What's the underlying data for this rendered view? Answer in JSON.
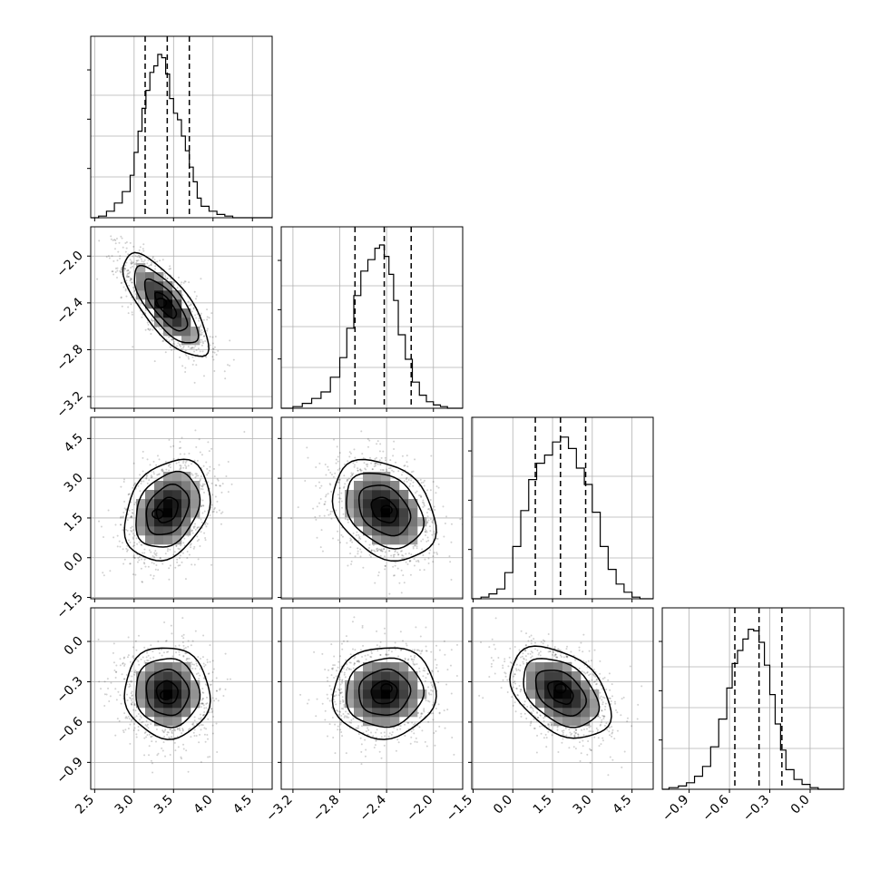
{
  "chart_data": {
    "type": "corner",
    "grid": true,
    "quantiles": [
      0.16,
      0.5,
      0.84
    ],
    "parameters": [
      {
        "index": 0,
        "range": [
          2.45,
          4.75
        ],
        "ticks": [
          2.5,
          3.0,
          3.5,
          4.0,
          4.5
        ],
        "tick_labels": [
          "2.5",
          "3.0",
          "3.5",
          "4.0",
          "4.5"
        ],
        "quantile_values": [
          3.14,
          3.42,
          3.7
        ],
        "histogram": {
          "bin_edges": [
            2.55,
            2.65,
            2.75,
            2.85,
            2.95,
            3.0,
            3.05,
            3.1,
            3.15,
            3.2,
            3.25,
            3.3,
            3.35,
            3.4,
            3.45,
            3.5,
            3.55,
            3.6,
            3.65,
            3.7,
            3.75,
            3.8,
            3.85,
            3.95,
            4.05,
            4.15,
            4.25,
            4.35,
            4.45
          ],
          "counts": [
            0.01,
            0.04,
            0.09,
            0.16,
            0.26,
            0.4,
            0.53,
            0.67,
            0.78,
            0.89,
            0.93,
            1.0,
            0.98,
            0.88,
            0.73,
            0.64,
            0.6,
            0.5,
            0.41,
            0.31,
            0.22,
            0.12,
            0.07,
            0.04,
            0.02,
            0.01,
            0.0,
            0.0
          ]
        }
      },
      {
        "index": 1,
        "range": [
          -3.3,
          -1.75
        ],
        "ticks": [
          -3.2,
          -2.8,
          -2.4,
          -2.0
        ],
        "tick_labels": [
          "−3.2",
          "−2.8",
          "−2.4",
          "−2.0"
        ],
        "quantile_values": [
          -2.67,
          -2.42,
          -2.19
        ],
        "histogram": {
          "bin_edges": [
            -3.2,
            -3.12,
            -3.04,
            -2.96,
            -2.88,
            -2.8,
            -2.74,
            -2.68,
            -2.62,
            -2.56,
            -2.5,
            -2.46,
            -2.42,
            -2.38,
            -2.34,
            -2.3,
            -2.24,
            -2.18,
            -2.12,
            -2.06,
            -2.0,
            -1.94,
            -1.88,
            -1.82
          ],
          "counts": [
            0.01,
            0.03,
            0.06,
            0.1,
            0.19,
            0.31,
            0.49,
            0.69,
            0.84,
            0.91,
            0.98,
            1.0,
            0.93,
            0.82,
            0.66,
            0.45,
            0.3,
            0.16,
            0.08,
            0.04,
            0.02,
            0.01,
            0.0
          ]
        }
      },
      {
        "index": 2,
        "range": [
          -1.55,
          5.3
        ],
        "ticks": [
          -1.5,
          0.0,
          1.5,
          3.0,
          4.5
        ],
        "tick_labels": [
          "−1.5",
          "0.0",
          "1.5",
          "3.0",
          "4.5"
        ],
        "quantile_values": [
          0.85,
          1.8,
          2.75
        ],
        "histogram": {
          "bin_edges": [
            -1.2,
            -0.9,
            -0.6,
            -0.3,
            0.0,
            0.3,
            0.6,
            0.9,
            1.2,
            1.5,
            1.8,
            2.1,
            2.4,
            2.7,
            3.0,
            3.3,
            3.6,
            3.9,
            4.2,
            4.5,
            4.8,
            5.1
          ],
          "counts": [
            0.01,
            0.03,
            0.06,
            0.16,
            0.32,
            0.54,
            0.73,
            0.83,
            0.88,
            0.96,
            0.99,
            0.92,
            0.8,
            0.7,
            0.53,
            0.32,
            0.18,
            0.09,
            0.04,
            0.01,
            0.0
          ]
        }
      },
      {
        "index": 3,
        "range": [
          -1.1,
          0.25
        ],
        "ticks": [
          -0.9,
          -0.6,
          -0.3,
          0.0
        ],
        "tick_labels": [
          "−0.9",
          "−0.6",
          "−0.3",
          "0.0"
        ],
        "quantile_values": [
          -0.56,
          -0.38,
          -0.21
        ],
        "histogram": {
          "bin_edges": [
            -1.05,
            -0.98,
            -0.92,
            -0.86,
            -0.8,
            -0.74,
            -0.68,
            -0.62,
            -0.58,
            -0.54,
            -0.5,
            -0.46,
            -0.42,
            -0.38,
            -0.34,
            -0.3,
            -0.26,
            -0.22,
            -0.18,
            -0.12,
            -0.06,
            0.0,
            0.06,
            0.12,
            0.18
          ],
          "counts": [
            0.01,
            0.02,
            0.04,
            0.08,
            0.14,
            0.26,
            0.43,
            0.62,
            0.77,
            0.85,
            0.92,
            0.98,
            0.97,
            0.9,
            0.76,
            0.58,
            0.4,
            0.24,
            0.12,
            0.06,
            0.03,
            0.01,
            0.0,
            0.0
          ]
        }
      }
    ],
    "pairs": [
      {
        "x_param": 0,
        "y_param": 1,
        "mean": [
          3.4,
          -2.42
        ],
        "sd": [
          0.27,
          0.22
        ],
        "rho": -0.75,
        "levels": [
          0.5,
          1.0,
          1.5,
          2.0
        ],
        "peak": [
          3.34,
          -2.4
        ]
      },
      {
        "x_param": 0,
        "y_param": 2,
        "mean": [
          3.42,
          1.8
        ],
        "sd": [
          0.27,
          0.95
        ],
        "rho": 0.28,
        "levels": [
          0.5,
          1.0,
          1.5,
          2.0
        ],
        "peak": [
          3.3,
          1.65
        ]
      },
      {
        "x_param": 1,
        "y_param": 2,
        "mean": [
          -2.42,
          1.8
        ],
        "sd": [
          0.22,
          0.95
        ],
        "rho": -0.3,
        "levels": [
          0.5,
          1.0,
          1.5,
          2.0
        ],
        "peak": [
          -2.4,
          1.8
        ]
      },
      {
        "x_param": 0,
        "y_param": 3,
        "mean": [
          3.42,
          -0.38
        ],
        "sd": [
          0.27,
          0.17
        ],
        "rho": -0.05,
        "levels": [
          0.5,
          1.0,
          1.5,
          2.0
        ],
        "peak": [
          3.4,
          -0.4
        ]
      },
      {
        "x_param": 1,
        "y_param": 3,
        "mean": [
          -2.42,
          -0.38
        ],
        "sd": [
          0.22,
          0.17
        ],
        "rho": 0.05,
        "levels": [
          0.5,
          1.0,
          1.5,
          2.0
        ],
        "peak": [
          -2.4,
          -0.35
        ]
      },
      {
        "x_param": 2,
        "y_param": 3,
        "mean": [
          1.8,
          -0.38
        ],
        "sd": [
          0.95,
          0.17
        ],
        "rho": -0.4,
        "levels": [
          0.5,
          1.0,
          1.5,
          2.0
        ],
        "peak": [
          1.8,
          -0.35
        ]
      }
    ]
  }
}
